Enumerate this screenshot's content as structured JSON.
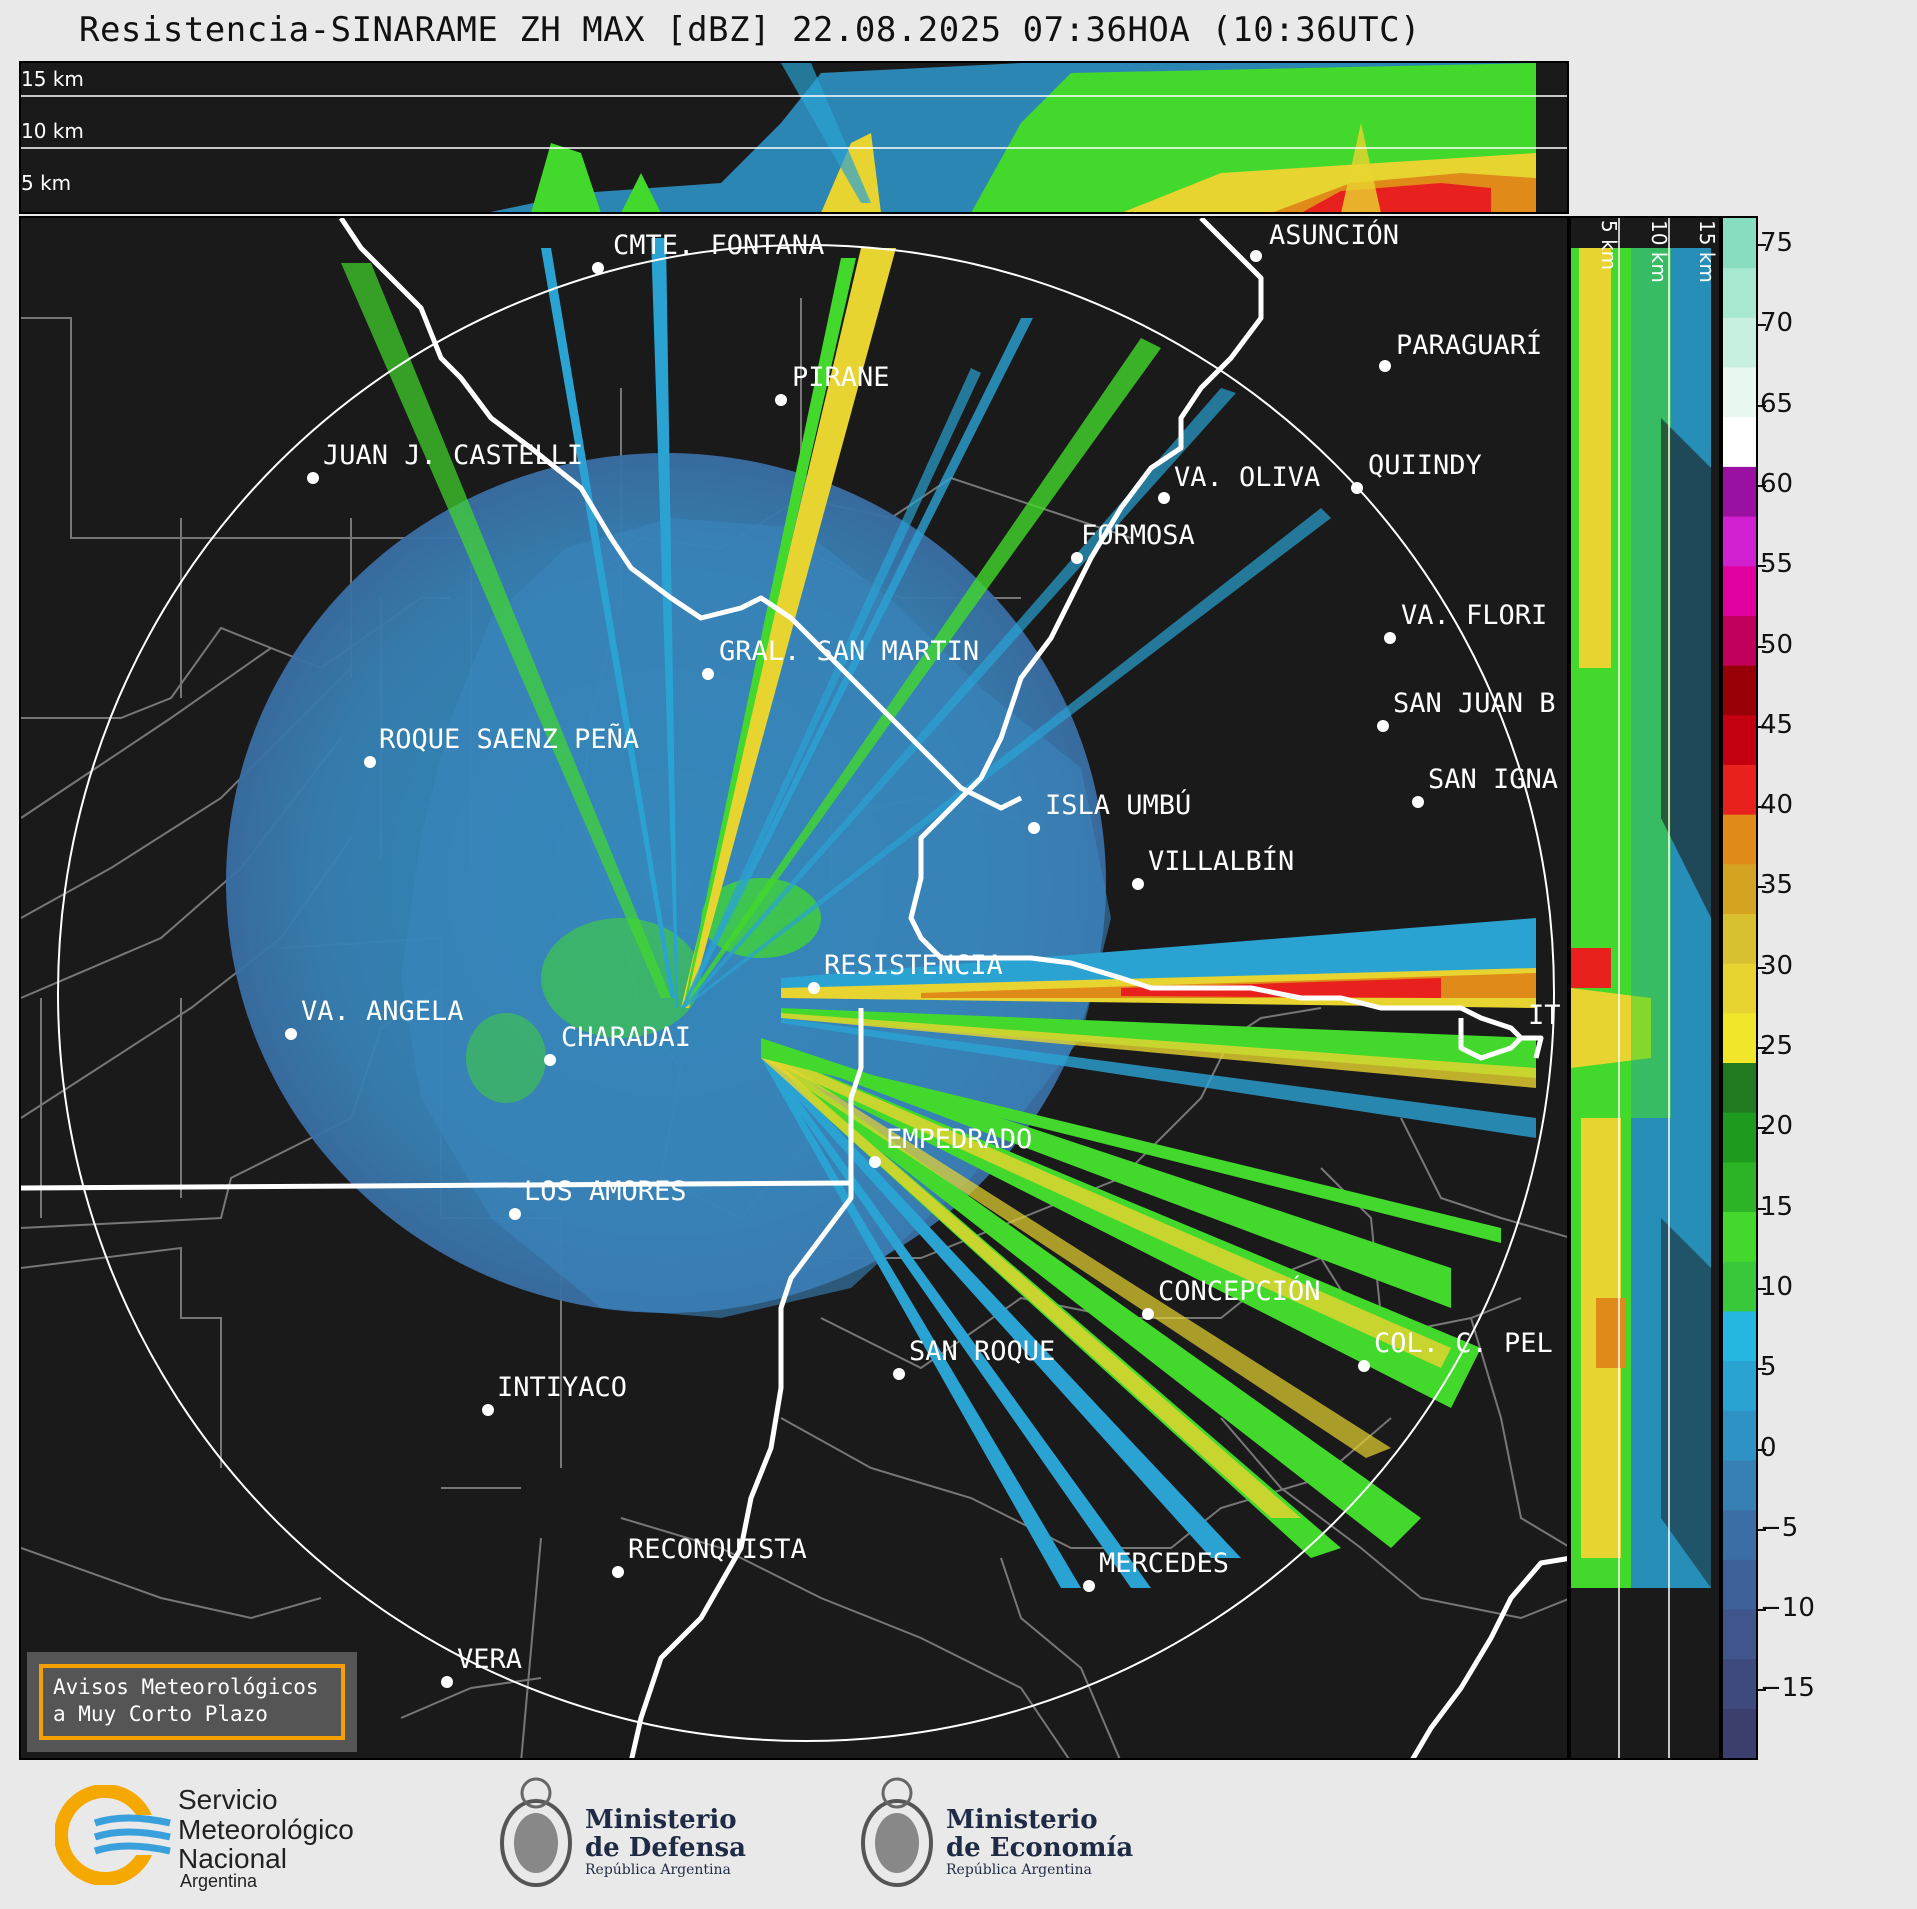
{
  "title": "Resistencia-SINARAME ZH MAX [dBZ] 22.08.2025 07:36HOA (10:36UTC)",
  "top_panel": {
    "height_labels": [
      "15 km",
      "10 km",
      "5 km"
    ]
  },
  "side_panel": {
    "height_labels": [
      "5 km",
      "10 km",
      "15 km"
    ]
  },
  "cities": [
    {
      "name": "CMTE. FONTANA",
      "marker": true
    },
    {
      "name": "ASUNCIÓN",
      "marker": true
    },
    {
      "name": "PARAGUARÍ",
      "marker": true
    },
    {
      "name": "PIRANE",
      "marker": true
    },
    {
      "name": "JUAN J. CASTELLI",
      "marker": true
    },
    {
      "name": "VA. OLIVA",
      "marker": true
    },
    {
      "name": "QUIINDY",
      "marker": true
    },
    {
      "name": "FORMOSA",
      "marker": true
    },
    {
      "name": "VA. FLORI",
      "marker": true
    },
    {
      "name": "GRAL. SAN MARTIN",
      "marker": true
    },
    {
      "name": "SAN JUAN B",
      "marker": true
    },
    {
      "name": "ROQUE SAENZ PEÑA",
      "marker": true
    },
    {
      "name": "SAN IGNA",
      "marker": true
    },
    {
      "name": "ISLA UMBÚ",
      "marker": true
    },
    {
      "name": "VILLALBÍN",
      "marker": true
    },
    {
      "name": "RESISTENCIA",
      "marker": true
    },
    {
      "name": "IT",
      "marker": false
    },
    {
      "name": "VA. ANGELA",
      "marker": true
    },
    {
      "name": "CHARADAI",
      "marker": true
    },
    {
      "name": "EMPEDRADO",
      "marker": true
    },
    {
      "name": "LOS AMORES",
      "marker": true
    },
    {
      "name": "CONCEPCIÓN",
      "marker": true
    },
    {
      "name": "COL. C. PEL",
      "marker": true
    },
    {
      "name": "SAN ROQUE",
      "marker": true
    },
    {
      "name": "INTIYACO",
      "marker": true
    },
    {
      "name": "RECONQUISTA",
      "marker": true
    },
    {
      "name": "MERCEDES",
      "marker": true
    },
    {
      "name": "VERA",
      "marker": true
    }
  ],
  "colorbar": {
    "ticks": [
      "75",
      "70",
      "65",
      "60",
      "55",
      "50",
      "45",
      "40",
      "35",
      "30",
      "25",
      "20",
      "15",
      "10",
      "5",
      "0",
      "−5",
      "−10",
      "−15"
    ],
    "colors": [
      "#3a3f6e",
      "#3e4a7e",
      "#3f558c",
      "#3d6198",
      "#3a6ea4",
      "#3680b3",
      "#2f92c4",
      "#2aa3d3",
      "#25b6e2",
      "#39c83a",
      "#42d82c",
      "#2cb426",
      "#1e9a1e",
      "#217a20",
      "#f0e62a",
      "#e8d430",
      "#d8c030",
      "#d4a420",
      "#e08a1a",
      "#e8201e",
      "#c40010",
      "#980008",
      "#c0005a",
      "#e000a0",
      "#d020d0",
      "#9a10a0",
      "#ffffff",
      "#e8f8f0",
      "#c8f0e0",
      "#a8e8d0",
      "#88dcc0"
    ],
    "colors_note": ""
  },
  "aviso": {
    "line1": "Avisos Meteorológicos",
    "line2": "a Muy Corto Plazo"
  },
  "logos": {
    "smn": {
      "line1": "Servicio",
      "line2": "Meteorológico",
      "line3": "Nacional",
      "line4": "Argentina"
    },
    "defensa": {
      "line1": "Ministerio",
      "line2": "de Defensa",
      "line3": "República Argentina"
    },
    "economia": {
      "line1": "Ministerio",
      "line2": "de Economía",
      "line3": "República Argentina"
    }
  }
}
